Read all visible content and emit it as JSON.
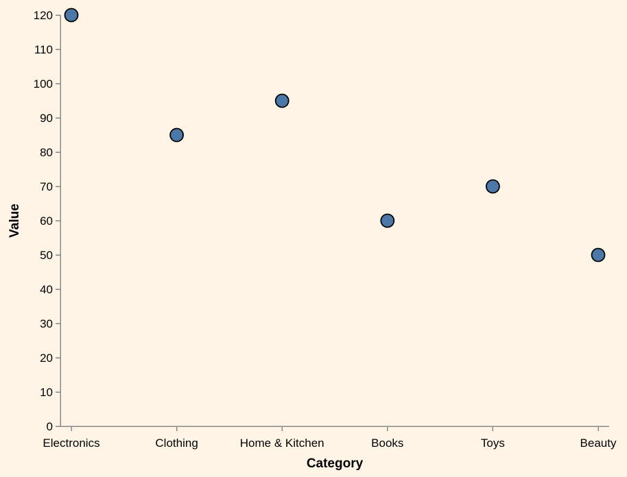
{
  "chart_data": {
    "type": "scatter",
    "categories": [
      "Electronics",
      "Clothing",
      "Home & Kitchen",
      "Books",
      "Toys",
      "Beauty"
    ],
    "values": [
      120,
      85,
      95,
      60,
      70,
      50
    ],
    "title": "",
    "xlabel": "Category",
    "ylabel": "Value",
    "ylim": [
      0,
      120
    ],
    "yticks": [
      0,
      10,
      20,
      30,
      40,
      50,
      60,
      70,
      80,
      90,
      100,
      110,
      120
    ],
    "grid": false,
    "legend": "none"
  },
  "colors": {
    "background": "#fff4e6",
    "point_fill": "#4c78a8",
    "point_stroke": "#000000",
    "axis": "#888888",
    "text": "#000000"
  }
}
